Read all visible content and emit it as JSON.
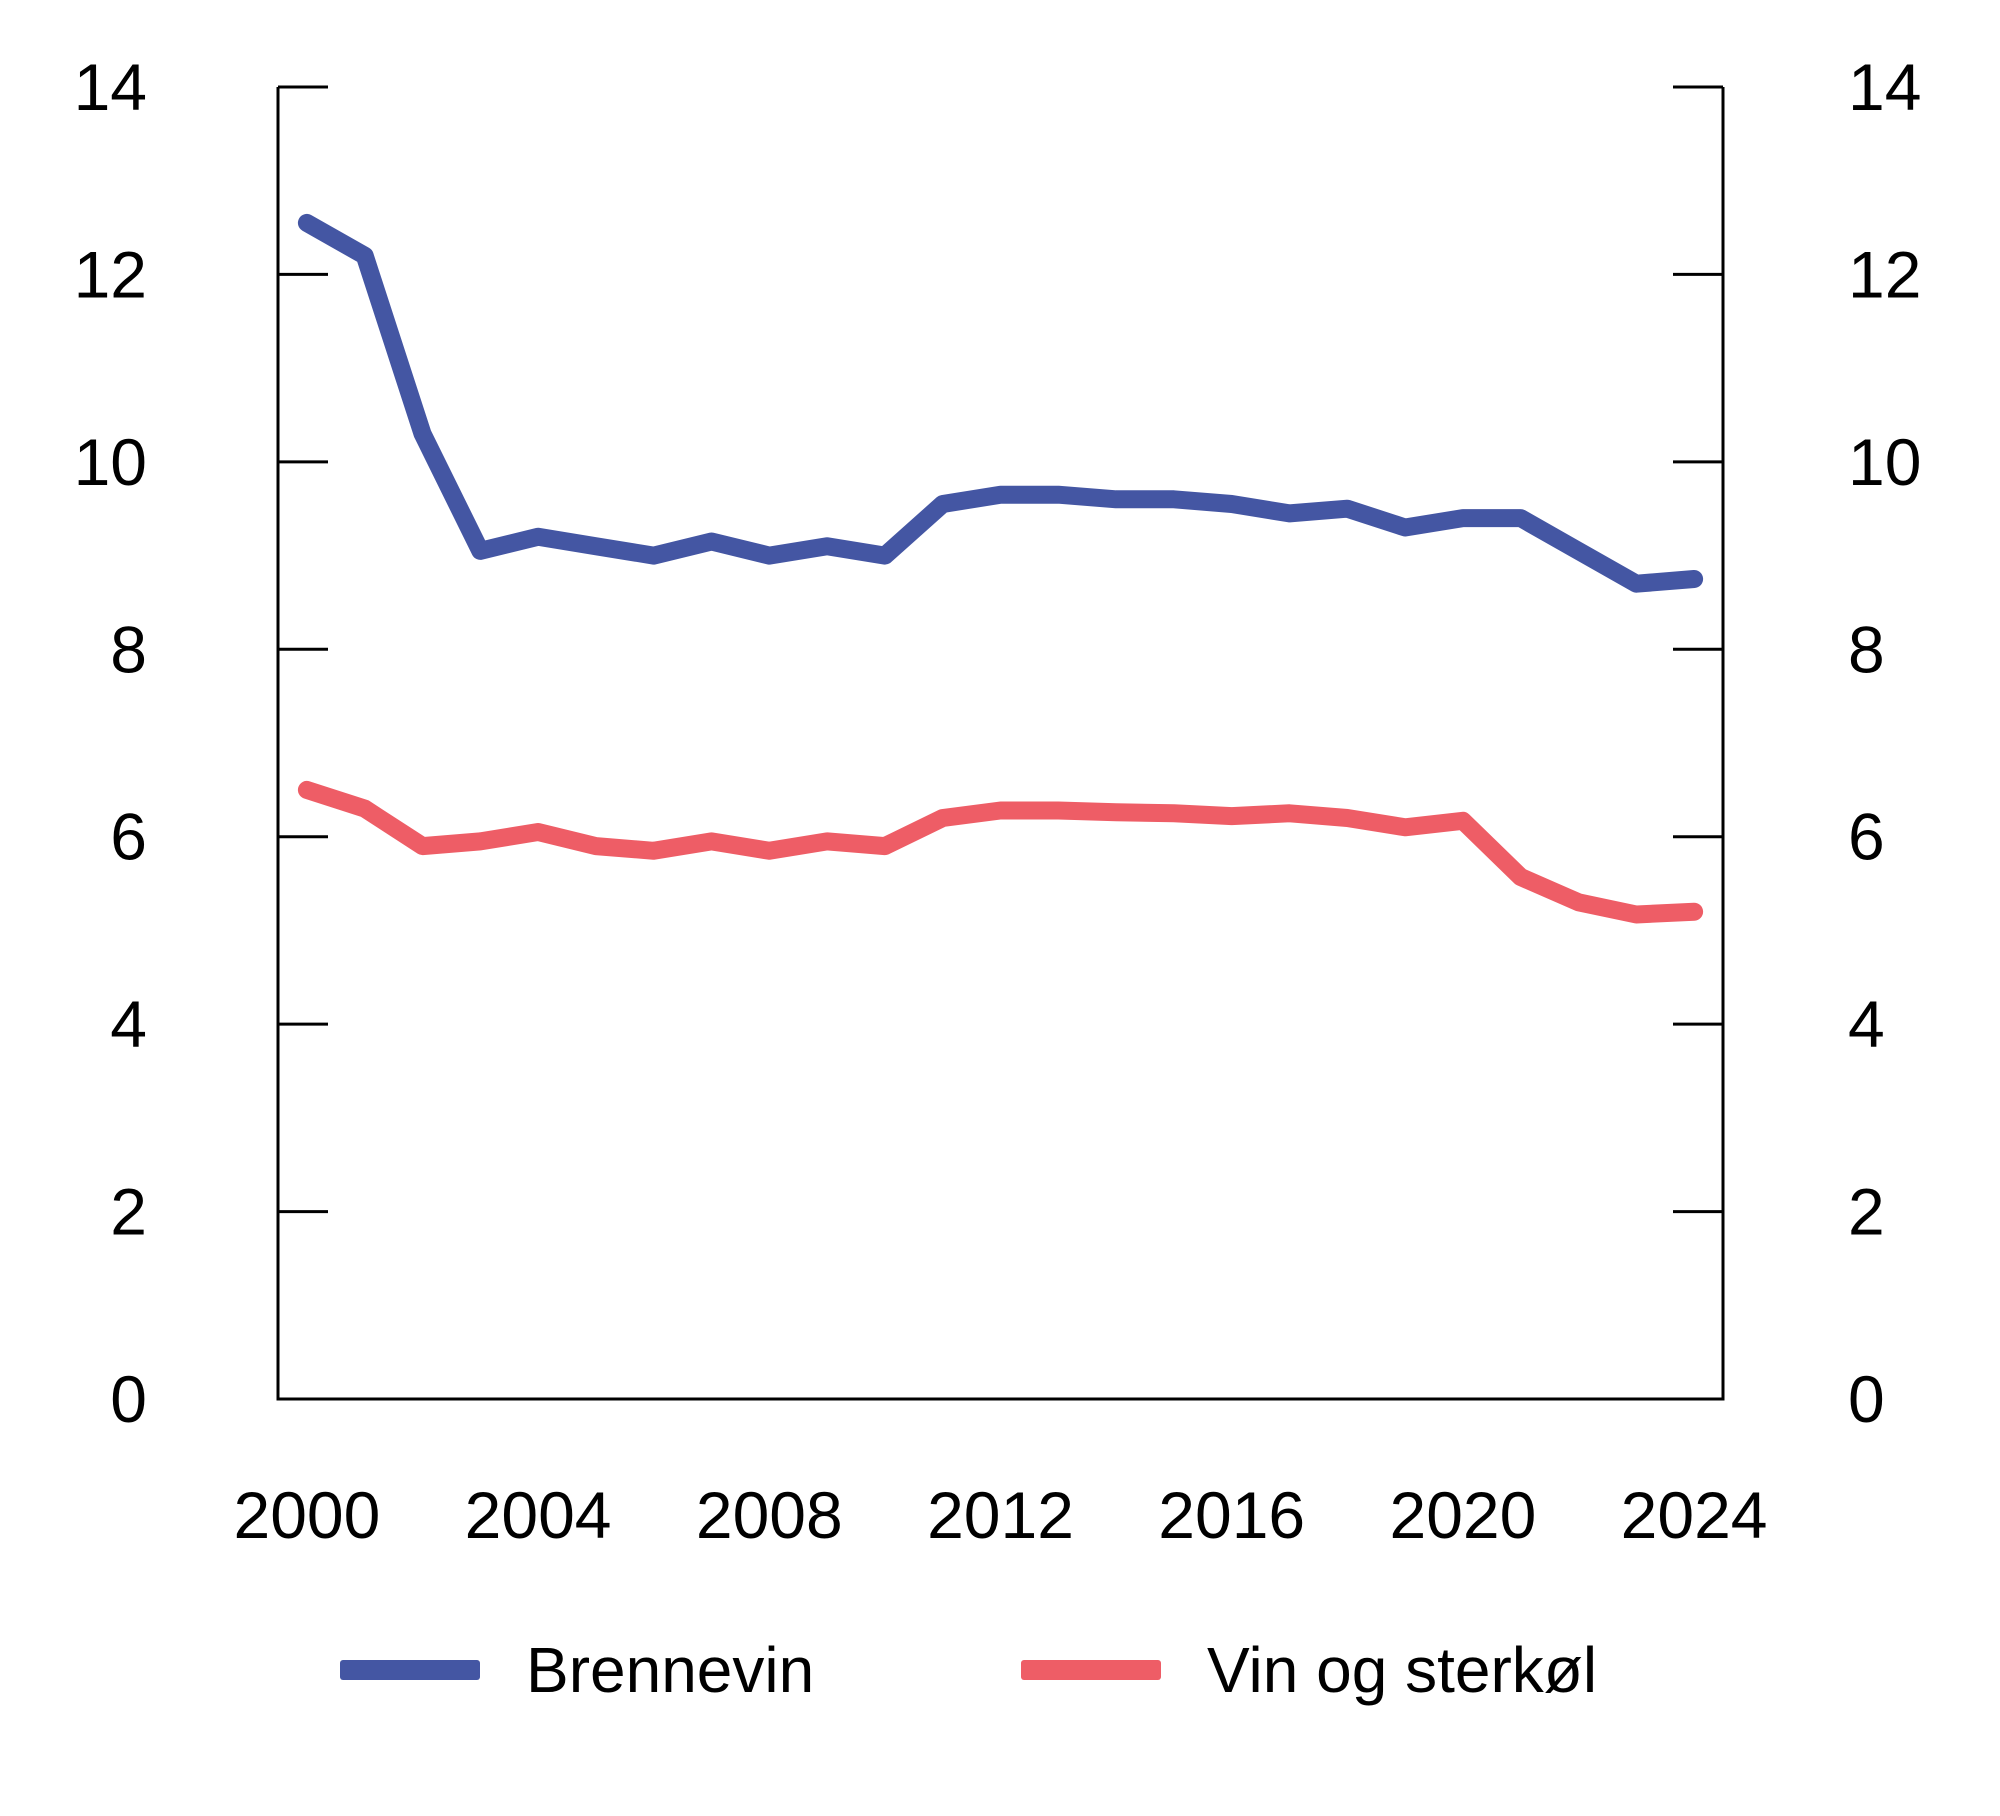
{
  "chart_data": {
    "type": "line",
    "x": [
      2000,
      2001,
      2002,
      2003,
      2004,
      2005,
      2006,
      2007,
      2008,
      2009,
      2010,
      2011,
      2012,
      2013,
      2014,
      2015,
      2016,
      2017,
      2018,
      2019,
      2020,
      2021,
      2022,
      2023,
      2024
    ],
    "series": [
      {
        "name": "Brennevin",
        "color": "#4456A3",
        "values": [
          12.55,
          12.2,
          10.3,
          9.05,
          9.2,
          9.1,
          9.0,
          9.15,
          9.0,
          9.1,
          9.0,
          9.55,
          9.65,
          9.65,
          9.6,
          9.6,
          9.55,
          9.45,
          9.5,
          9.3,
          9.4,
          9.4,
          9.05,
          8.7,
          8.75
        ]
      },
      {
        "name": "Vin og sterkøl",
        "color": "#EE5D66",
        "values": [
          6.5,
          6.3,
          5.9,
          5.95,
          6.05,
          5.9,
          5.85,
          5.95,
          5.85,
          5.95,
          5.9,
          6.2,
          6.28,
          6.28,
          6.26,
          6.25,
          6.22,
          6.25,
          6.2,
          6.1,
          6.17,
          5.57,
          5.3,
          5.17,
          5.2
        ]
      }
    ],
    "title": "",
    "xlabel": "",
    "ylabel": "",
    "ylim": [
      0,
      14
    ],
    "yticks": [
      0,
      2,
      4,
      6,
      8,
      10,
      12,
      14
    ],
    "ytick_labels": [
      "0",
      "2",
      "4",
      "6",
      "8",
      "10",
      "12",
      "14"
    ],
    "y_axis_sides": "both",
    "xticks": [
      2000,
      2004,
      2008,
      2012,
      2016,
      2020,
      2024
    ],
    "xtick_labels": [
      "2000",
      "2004",
      "2008",
      "2012",
      "2016",
      "2020",
      "2024"
    ],
    "x_range_padding_years": 0.5,
    "grid": false,
    "legend_position": "bottom",
    "axis_color": "#000000",
    "background_color": "#ffffff"
  },
  "legend": {
    "items": [
      {
        "label": "Brennevin",
        "color": "#4456A3"
      },
      {
        "label": "Vin og sterkøl",
        "color": "#EE5D66"
      }
    ]
  }
}
